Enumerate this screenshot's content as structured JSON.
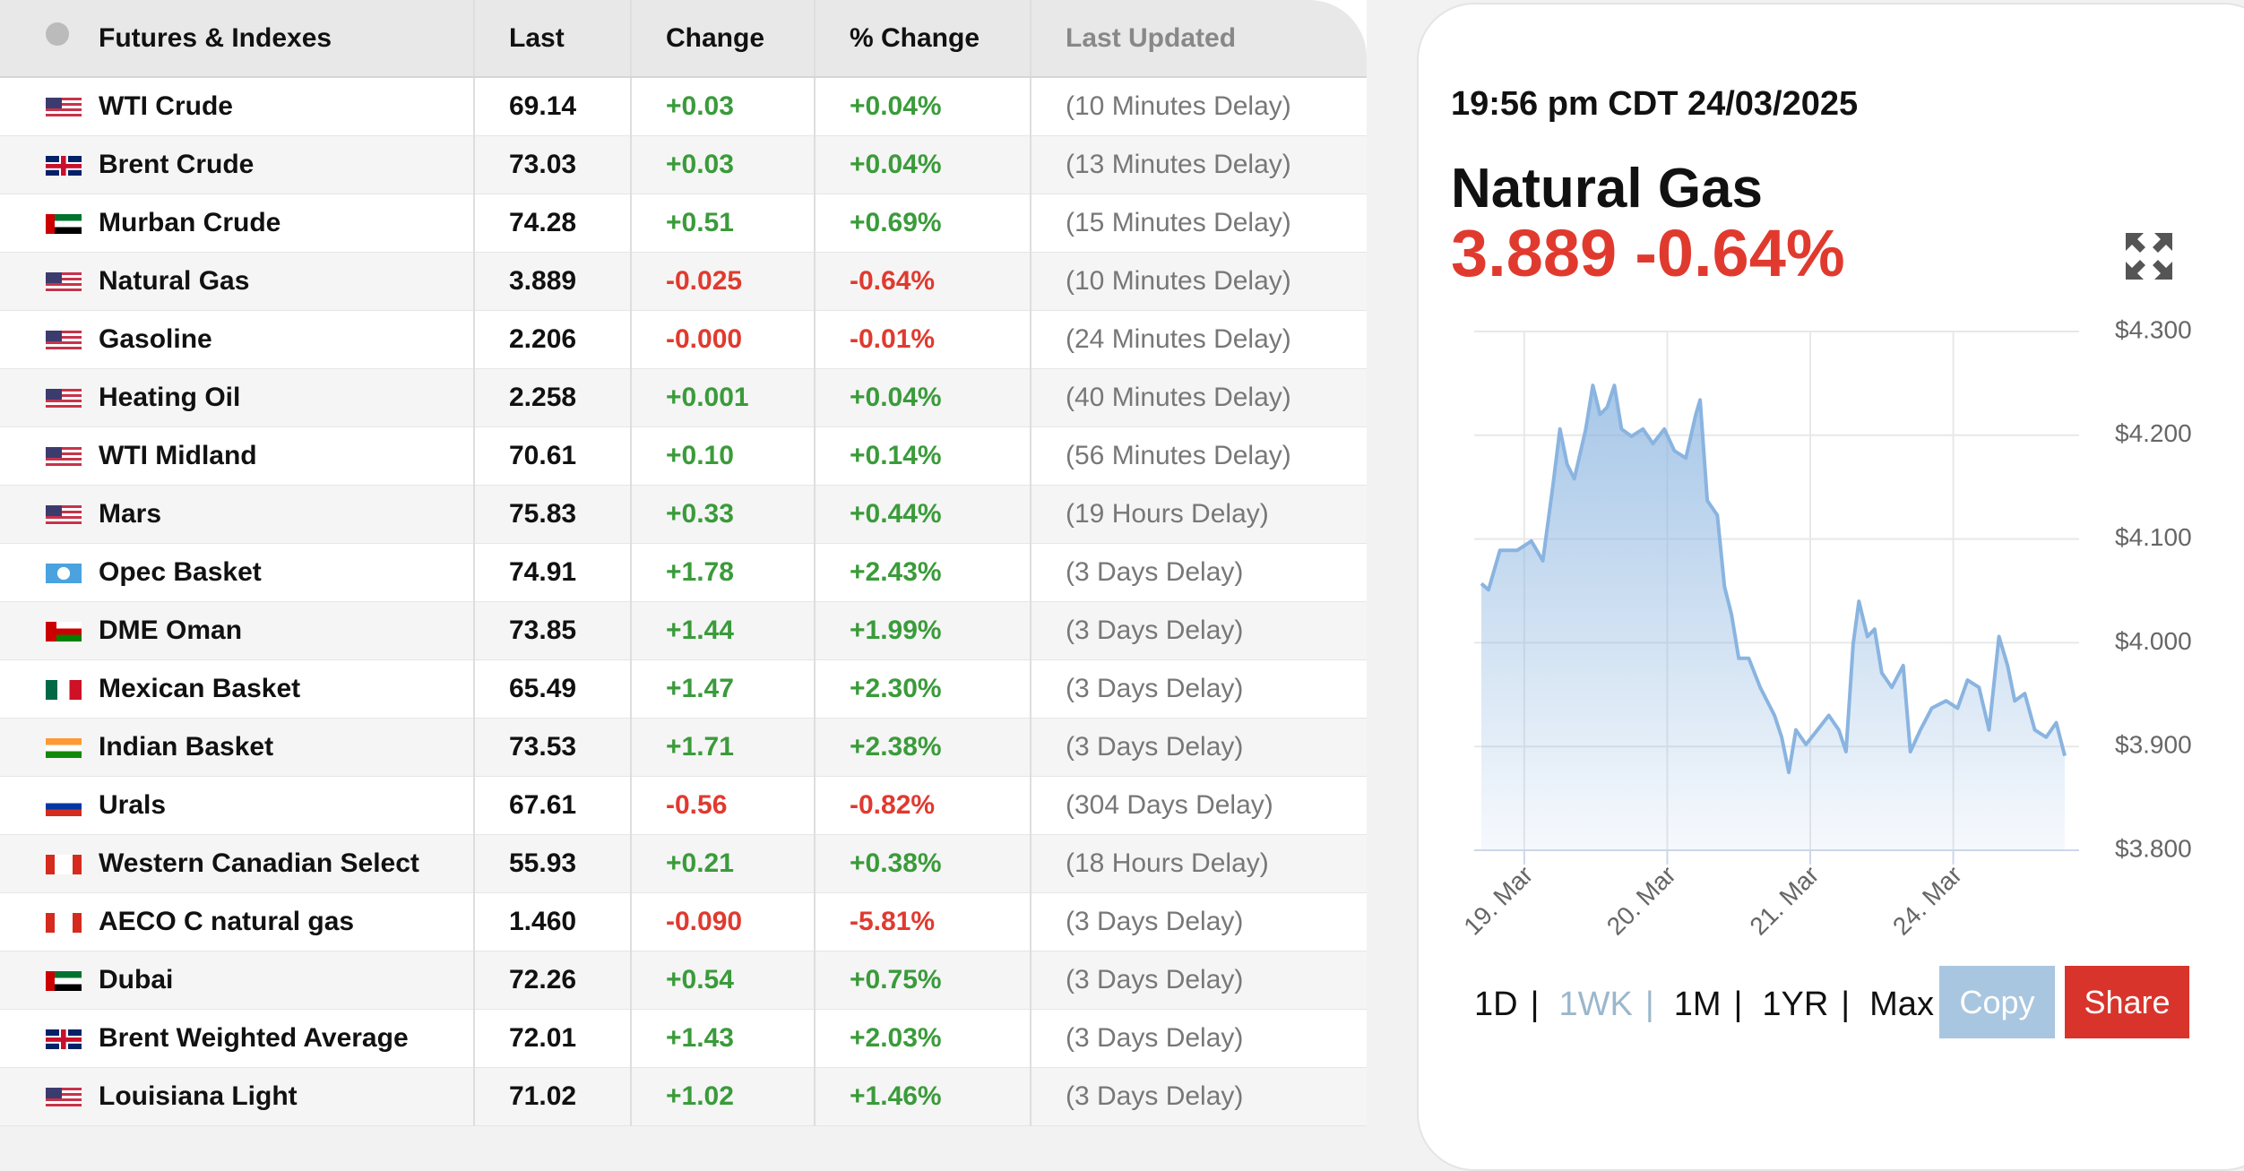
{
  "table": {
    "headers": [
      "Futures & Indexes",
      "Last",
      "Change",
      "% Change",
      "Last Updated"
    ],
    "rows": [
      [
        "WTI Crude",
        "69.14",
        "+0.03",
        "+0.04%",
        "(10 Minutes Delay)"
      ],
      [
        "Brent Crude",
        "73.03",
        "+0.03",
        "+0.04%",
        "(13 Minutes Delay)"
      ],
      [
        "Murban Crude",
        "74.28",
        "+0.51",
        "+0.69%",
        "(15 Minutes Delay)"
      ],
      [
        "Natural Gas",
        "3.889",
        "-0.025",
        "-0.64%",
        "(10 Minutes Delay)"
      ],
      [
        "Gasoline",
        "2.206",
        "-0.000",
        "-0.01%",
        "(24 Minutes Delay)"
      ],
      [
        "Heating Oil",
        "2.258",
        "+0.001",
        "+0.04%",
        "(40 Minutes Delay)"
      ],
      [
        "WTI Midland",
        "70.61",
        "+0.10",
        "+0.14%",
        "(56 Minutes Delay)"
      ],
      [
        "Mars",
        "75.83",
        "+0.33",
        "+0.44%",
        "(19 Hours Delay)"
      ],
      [
        "Opec Basket",
        "74.91",
        "+1.78",
        "+2.43%",
        "(3 Days Delay)"
      ],
      [
        "DME Oman",
        "73.85",
        "+1.44",
        "+1.99%",
        "(3 Days Delay)"
      ],
      [
        "Mexican Basket",
        "65.49",
        "+1.47",
        "+2.30%",
        "(3 Days Delay)"
      ],
      [
        "Indian Basket",
        "73.53",
        "+1.71",
        "+2.38%",
        "(3 Days Delay)"
      ],
      [
        "Urals",
        "67.61",
        "-0.56",
        "-0.82%",
        "(304 Days Delay)"
      ],
      [
        "Western Canadian Select",
        "55.93",
        "+0.21",
        "+0.38%",
        "(18 Hours Delay)"
      ],
      [
        "AECO C natural gas",
        "1.460",
        "-0.090",
        "-5.81%",
        "(3 Days Delay)"
      ],
      [
        "Dubai",
        "72.26",
        "+0.54",
        "+0.75%",
        "(3 Days Delay)"
      ],
      [
        "Brent Weighted Average",
        "72.01",
        "+1.43",
        "+2.03%",
        "(3 Days Delay)"
      ],
      [
        "Louisiana Light",
        "71.02",
        "+1.02",
        "+1.46%",
        "(3 Days Delay)"
      ]
    ]
  },
  "panel": {
    "timestamp": "19:56 pm CDT 24/03/2025",
    "name": "Natural Gas",
    "price": "3.889",
    "change": "-0.64%",
    "ranges": [
      "1D",
      "1WK",
      "1M",
      "1YR",
      "Max"
    ],
    "separator": "|",
    "active_range": "1WK",
    "buttons": [
      "Copy",
      "Share"
    ]
  },
  "chart_data": {
    "type": "area",
    "color": "#8ab4e0",
    "x": [
      0.7,
      0.75,
      0.83,
      0.95,
      1.05,
      1.13,
      1.2,
      1.25,
      1.3,
      1.35,
      1.43,
      1.48,
      1.53,
      1.58,
      1.63,
      1.68,
      1.75,
      1.83,
      1.9,
      1.98,
      2.05,
      2.13,
      2.2,
      2.23,
      2.28,
      2.35,
      2.4,
      2.45,
      2.5,
      2.57,
      2.65,
      2.75,
      2.8,
      2.85,
      2.9,
      2.97,
      3.05,
      3.13,
      3.2,
      3.25,
      3.3,
      3.34,
      3.4,
      3.45,
      3.5,
      3.57,
      3.65,
      3.7,
      3.77,
      3.85,
      3.95,
      4.03,
      4.1,
      4.18,
      4.25,
      4.32,
      4.38,
      4.43,
      4.5,
      4.57,
      4.65,
      4.72,
      4.78
    ],
    "values": [
      4.057,
      4.051,
      4.089,
      4.089,
      4.098,
      4.079,
      4.151,
      4.206,
      4.172,
      4.158,
      4.206,
      4.248,
      4.22,
      4.227,
      4.248,
      4.206,
      4.199,
      4.206,
      4.192,
      4.206,
      4.185,
      4.178,
      4.22,
      4.234,
      4.137,
      4.123,
      4.054,
      4.027,
      3.985,
      3.985,
      3.957,
      3.93,
      3.909,
      3.875,
      3.916,
      3.902,
      3.916,
      3.93,
      3.916,
      3.895,
      3.999,
      4.04,
      4.006,
      4.013,
      3.971,
      3.957,
      3.978,
      3.895,
      3.916,
      3.937,
      3.944,
      3.937,
      3.964,
      3.957,
      3.916,
      4.006,
      3.978,
      3.944,
      3.951,
      3.916,
      3.909,
      3.923,
      3.891
    ],
    "xlim": [
      0.65,
      4.88
    ],
    "xticks": [
      {
        "value": 1,
        "label": "19. Mar"
      },
      {
        "value": 2,
        "label": "20. Mar"
      },
      {
        "value": 3,
        "label": "21. Mar"
      },
      {
        "value": 4,
        "label": "24. Mar"
      }
    ],
    "ylim": [
      3.8,
      4.3
    ],
    "yticks": [
      {
        "value": 3.8,
        "label": "$3.800"
      },
      {
        "value": 3.9,
        "label": "$3.900"
      },
      {
        "value": 4.0,
        "label": "$4.000"
      },
      {
        "value": 4.1,
        "label": "$4.100"
      },
      {
        "value": 4.2,
        "label": "$4.200"
      },
      {
        "value": 4.3,
        "label": "$4.300"
      }
    ],
    "grid": true
  }
}
